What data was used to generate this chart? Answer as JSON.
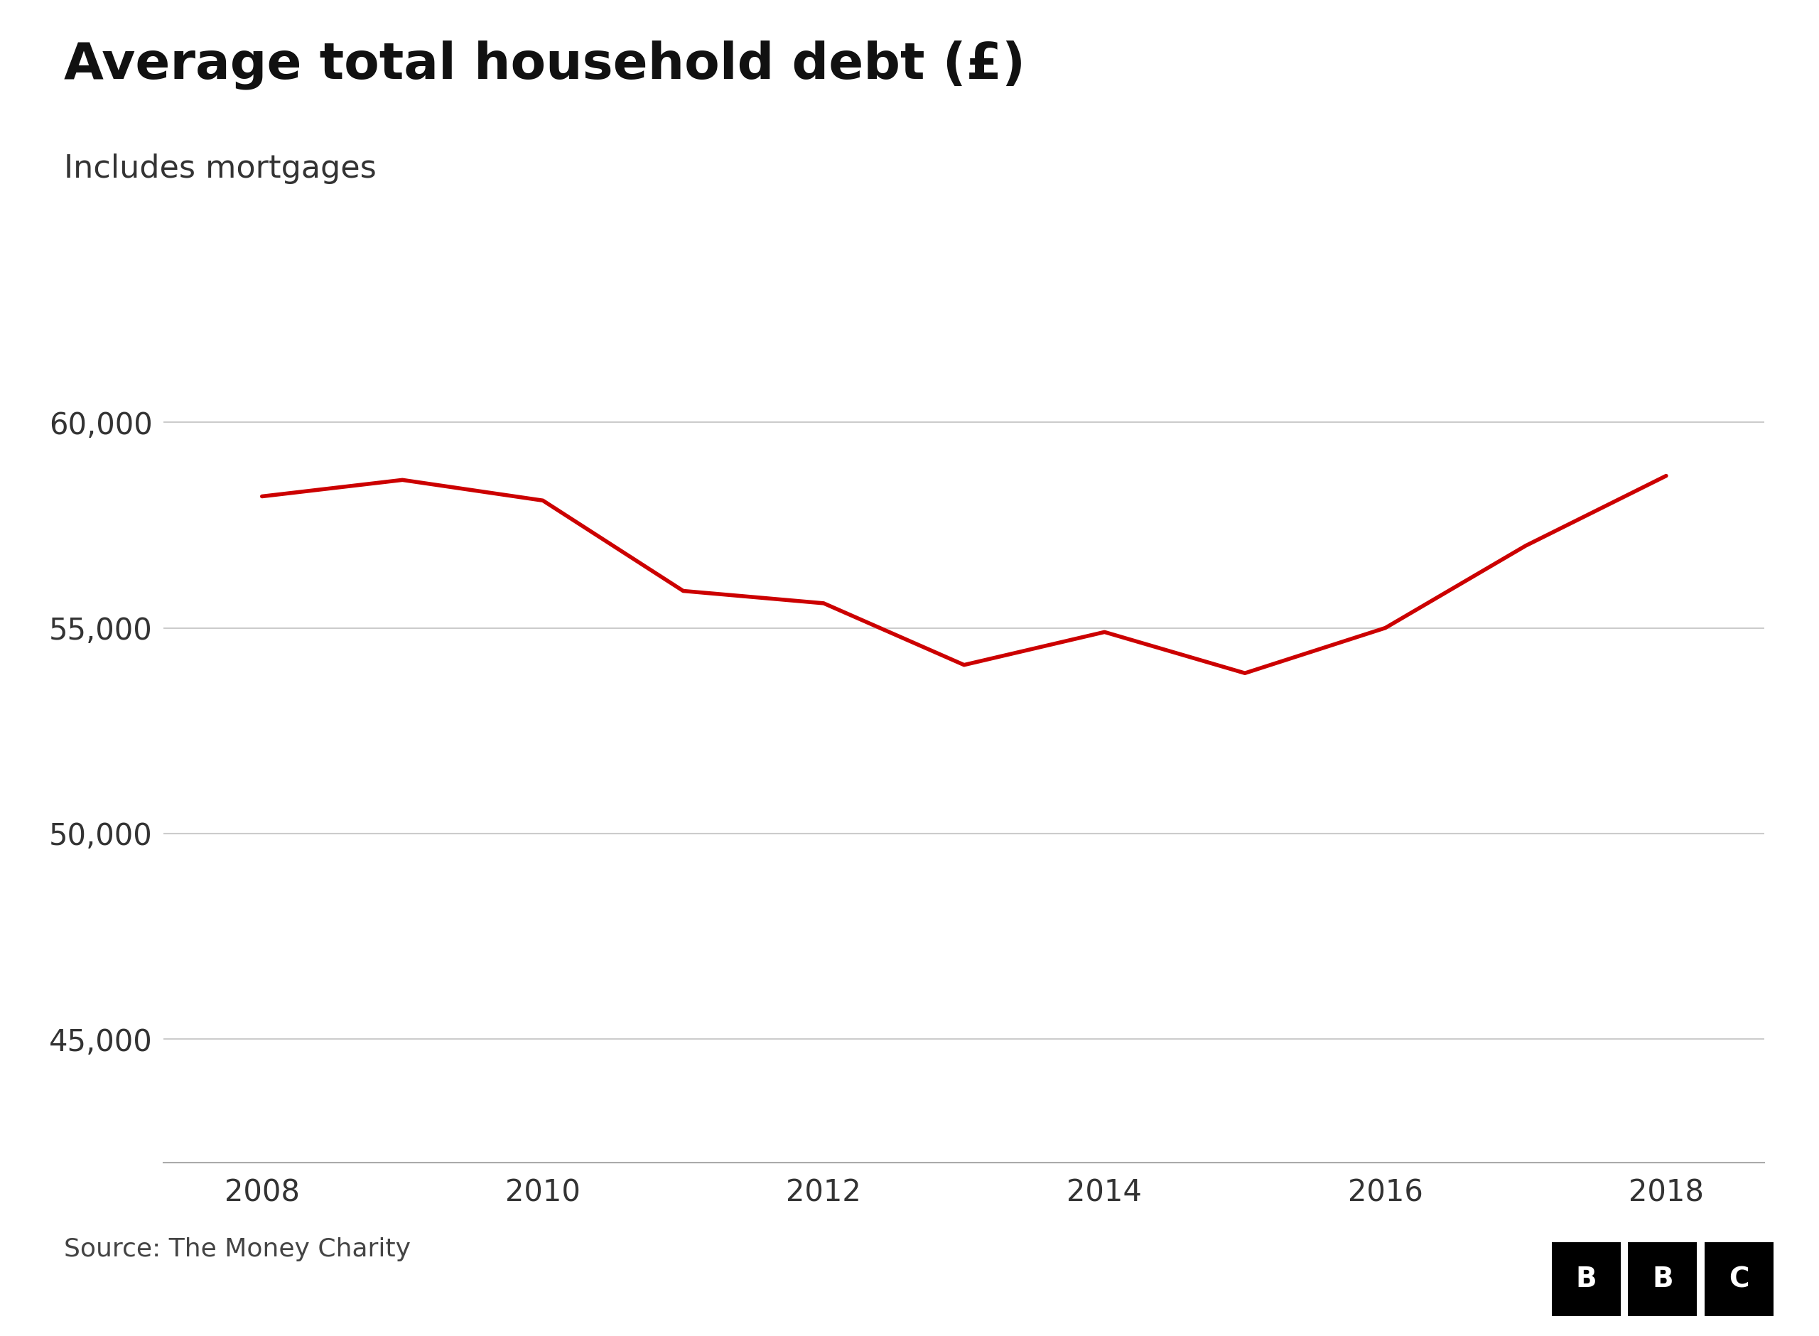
{
  "title": "Average total household debt (£)",
  "subtitle": "Includes mortgages",
  "source": "Source: The Money Charity",
  "line_color": "#cc0000",
  "background_color": "#ffffff",
  "grid_color": "#cccccc",
  "years": [
    2008,
    2009,
    2010,
    2011,
    2012,
    2013,
    2014,
    2015,
    2016,
    2017,
    2018
  ],
  "values": [
    58200,
    58600,
    58100,
    55900,
    55600,
    54100,
    54900,
    53900,
    55000,
    57000,
    58700
  ],
  "ylim_bottom": 42000,
  "ylim_top": 61500,
  "yticks": [
    45000,
    50000,
    55000,
    60000
  ],
  "xticks": [
    2008,
    2010,
    2012,
    2014,
    2016,
    2018
  ],
  "title_fontsize": 52,
  "subtitle_fontsize": 32,
  "tick_fontsize": 30,
  "source_fontsize": 26,
  "bbc_fontsize": 28
}
